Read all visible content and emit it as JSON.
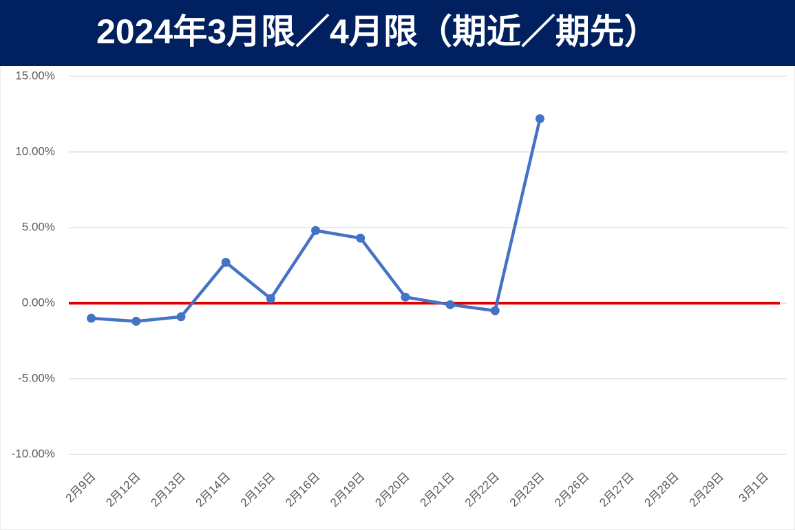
{
  "chart_data": {
    "type": "line",
    "title": "2024年3月限／4月限（期近／期先）",
    "categories": [
      "2月9日",
      "2月12日",
      "2月13日",
      "2月14日",
      "2月15日",
      "2月16日",
      "2月19日",
      "2月20日",
      "2月21日",
      "2月22日",
      "2月23日",
      "2月26日",
      "2月27日",
      "2月28日",
      "2月29日",
      "3月1日"
    ],
    "series": [
      {
        "color": "#4472c4",
        "values": [
          -1.0,
          -1.2,
          -0.9,
          2.7,
          0.3,
          4.8,
          4.3,
          0.4,
          -0.1,
          -0.5,
          12.2,
          null,
          null,
          null,
          null,
          null
        ]
      }
    ],
    "ylim": [
      -10,
      15
    ],
    "yticks": [
      {
        "value": -10,
        "label": "-10.00%"
      },
      {
        "value": -5,
        "label": "-5.00%"
      },
      {
        "value": 0,
        "label": "0.00%"
      },
      {
        "value": 5,
        "label": "5.00%"
      },
      {
        "value": 10,
        "label": "10.00%"
      },
      {
        "value": 15,
        "label": "15.00%"
      }
    ],
    "grid": true,
    "reference_line": {
      "value": 0,
      "color": "#e00000"
    }
  }
}
